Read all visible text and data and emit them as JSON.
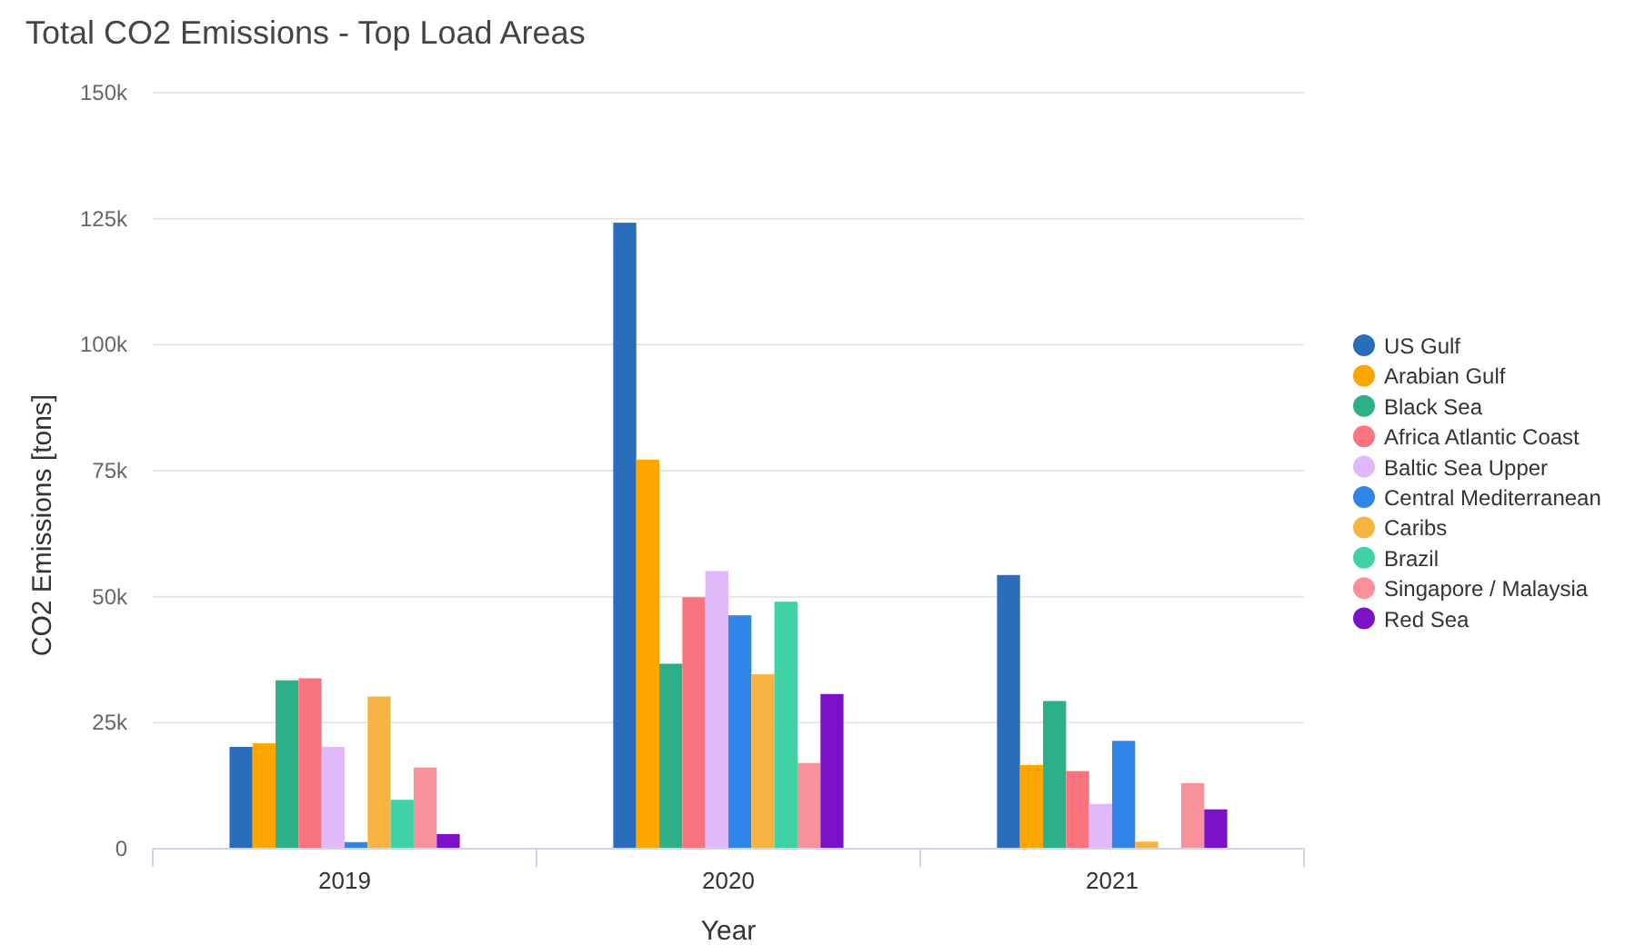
{
  "chart_data": {
    "type": "bar",
    "title": "Total CO2 Emissions - Top Load Areas",
    "xlabel": "Year",
    "ylabel": "CO2 Emissions [tons]",
    "categories": [
      "2019",
      "2020",
      "2021"
    ],
    "series": [
      {
        "name": "US Gulf",
        "color": "#2a6ebb",
        "values": [
          20.2,
          124.2,
          54.3
        ]
      },
      {
        "name": "Arabian Gulf",
        "color": "#ffa500",
        "values": [
          20.9,
          77.2,
          16.6
        ]
      },
      {
        "name": "Black Sea",
        "color": "#2db088",
        "values": [
          33.4,
          36.7,
          29.3
        ]
      },
      {
        "name": "Africa Atlantic Coast",
        "color": "#fa7480",
        "values": [
          33.8,
          49.9,
          15.4
        ]
      },
      {
        "name": "Baltic Sea Upper",
        "color": "#e0b9fa",
        "values": [
          20.2,
          55.1,
          8.9
        ]
      },
      {
        "name": "Central Mediterranean",
        "color": "#2f86e8",
        "values": [
          1.3,
          46.3,
          21.4
        ]
      },
      {
        "name": "Caribs",
        "color": "#f8b442",
        "values": [
          30.2,
          34.6,
          1.4
        ]
      },
      {
        "name": "Brazil",
        "color": "#40d1a5",
        "values": [
          9.7,
          49.0,
          null
        ]
      },
      {
        "name": "Singapore / Malaysia",
        "color": "#f8919a",
        "values": [
          16.1,
          17.0,
          13.0
        ]
      },
      {
        "name": "Red Sea",
        "color": "#7b12c9",
        "values": [
          2.9,
          30.7,
          7.8
        ]
      }
    ],
    "ylim": [
      0,
      150
    ],
    "yticks": [
      {
        "value": 0,
        "label": "0"
      },
      {
        "value": 25,
        "label": "25k"
      },
      {
        "value": 50,
        "label": "50k"
      },
      {
        "value": 75,
        "label": "75k"
      },
      {
        "value": 100,
        "label": "100k"
      },
      {
        "value": 125,
        "label": "125k"
      },
      {
        "value": 150,
        "label": "150k"
      }
    ],
    "grid": "y",
    "legend": "right"
  }
}
